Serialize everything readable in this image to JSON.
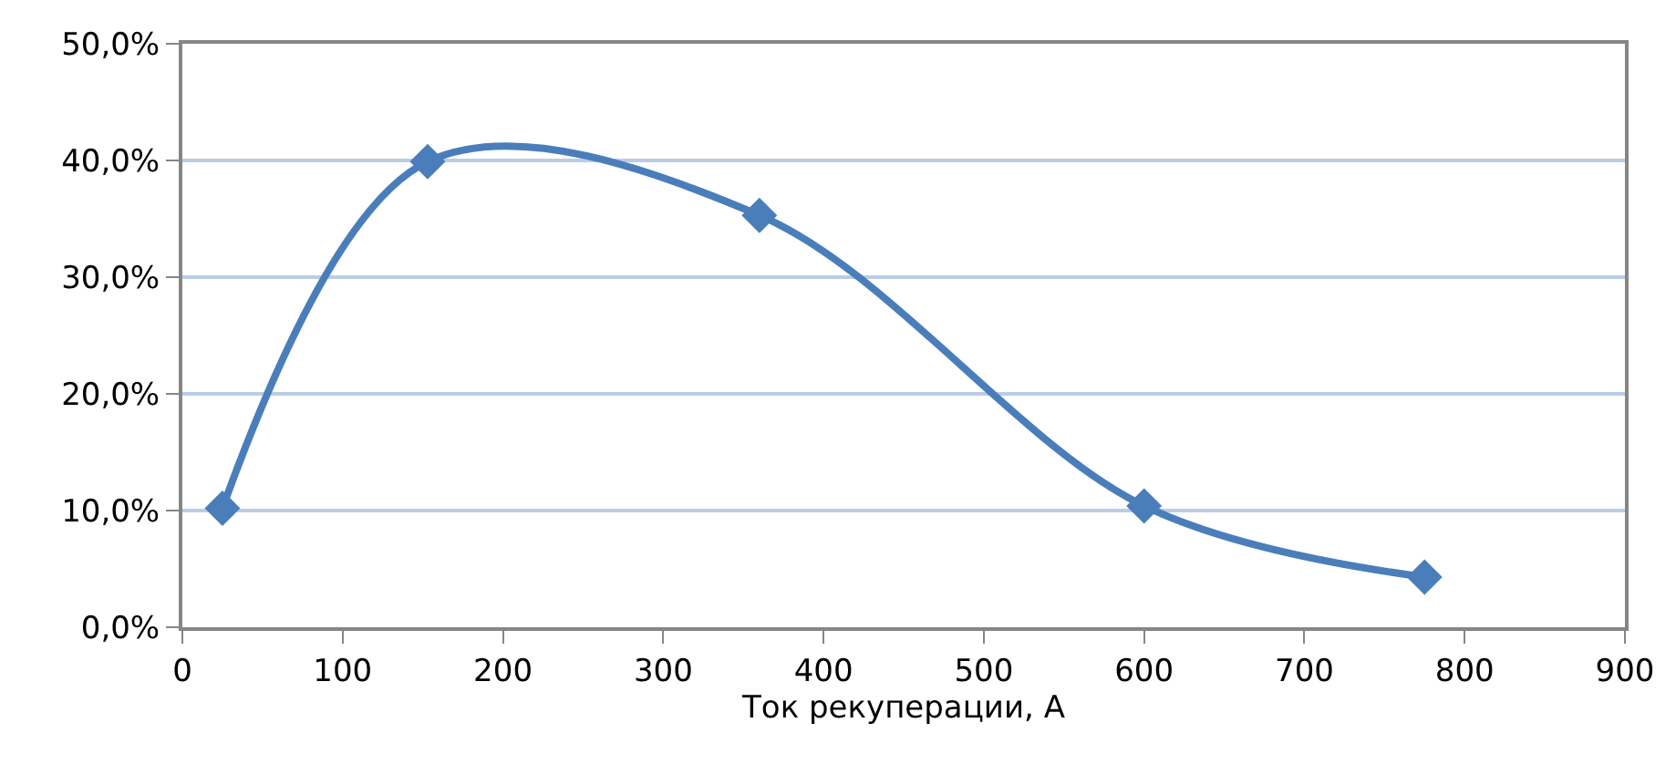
{
  "chart_data": {
    "type": "line",
    "xlabel": "Ток рекуперации, А",
    "x": [
      25,
      153,
      360,
      600,
      775
    ],
    "series": [
      {
        "color": "#4a7ebb",
        "values": [
          10.2,
          39.9,
          35.3,
          10.4,
          4.3
        ]
      }
    ],
    "xlim": [
      0,
      900
    ],
    "xticks": [
      0,
      100,
      200,
      300,
      400,
      500,
      600,
      700,
      800,
      900
    ],
    "ylim": [
      0,
      50
    ],
    "yticks": [
      {
        "value": 0,
        "label": "0,0%"
      },
      {
        "value": 10,
        "label": "10,0%"
      },
      {
        "value": 20,
        "label": "20,0%"
      },
      {
        "value": 30,
        "label": "30,0%"
      },
      {
        "value": 40,
        "label": "40,0%"
      },
      {
        "value": 50,
        "label": "50,0%"
      }
    ],
    "grid": "y",
    "marker": "diamond",
    "line_style": "solid"
  }
}
